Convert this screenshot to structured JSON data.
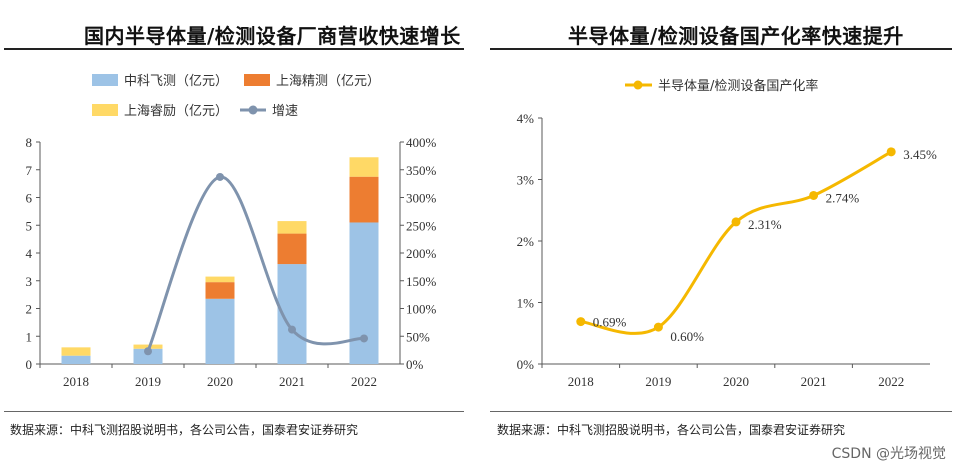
{
  "left_panel": {
    "title": "国内半导体量/检测设备厂商营收快速增长",
    "source": "数据来源：中科飞测招股说明书，各公司公告，国泰君安证券研究"
  },
  "right_panel": {
    "title": "半导体量/检测设备国产化率快速提升",
    "source": "数据来源：中科飞测招股说明书，各公司公告，国泰君安证券研究"
  },
  "watermark": "CSDN @光场视觉",
  "colors": {
    "series_a": "#9dc3e6",
    "series_b": "#ed7d31",
    "series_c": "#ffd966",
    "growth_line": "#7f93ad",
    "localization_line": "#f5b800",
    "axis": "#595959"
  },
  "chart_data": [
    {
      "type": "bar",
      "stacked": true,
      "categories": [
        "2018",
        "2019",
        "2020",
        "2021",
        "2022"
      ],
      "series": [
        {
          "name": "中科飞测（亿元）",
          "values": [
            0.3,
            0.55,
            2.35,
            3.6,
            5.1
          ]
        },
        {
          "name": "上海精测（亿元）",
          "values": [
            0.0,
            0.0,
            0.6,
            1.1,
            1.65
          ]
        },
        {
          "name": "上海睿励（亿元）",
          "values": [
            0.3,
            0.15,
            0.2,
            0.45,
            0.7
          ]
        }
      ],
      "line": {
        "name": "增速",
        "axis": "right",
        "values": [
          null,
          23,
          337,
          62,
          46
        ]
      },
      "ylim_left": [
        0,
        8
      ],
      "yticks_left": [
        "0",
        "1",
        "2",
        "3",
        "4",
        "5",
        "6",
        "7",
        "8"
      ],
      "ylim_right": [
        0,
        400
      ],
      "yticks_right": [
        "0%",
        "50%",
        "100%",
        "150%",
        "200%",
        "250%",
        "300%",
        "350%",
        "400%"
      ],
      "legend_position": "top"
    },
    {
      "type": "line",
      "categories": [
        "2018",
        "2019",
        "2020",
        "2021",
        "2022"
      ],
      "series": [
        {
          "name": "半导体量/检测设备国产化率",
          "values": [
            0.69,
            0.6,
            2.31,
            2.74,
            3.45
          ],
          "labels": [
            "0.69%",
            "0.60%",
            "2.31%",
            "2.74%",
            "3.45%"
          ]
        }
      ],
      "ylim": [
        0,
        4
      ],
      "yticks": [
        "0%",
        "1%",
        "2%",
        "3%",
        "4%"
      ],
      "legend_position": "top"
    }
  ]
}
